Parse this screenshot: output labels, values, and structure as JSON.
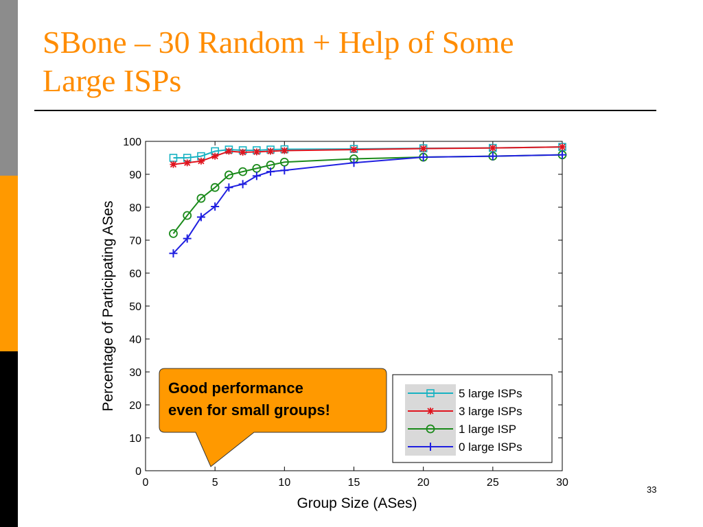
{
  "slide": {
    "title_line1": "SBone – 30 Random + Help of  Some",
    "title_line2": "Large ISPs",
    "page_number": "33"
  },
  "callout": {
    "line1": "Good performance",
    "line2": "even for small groups!",
    "fill_color": "#ff9900"
  },
  "colors": {
    "sidebar": [
      "#8c8c8c",
      "#ff9900",
      "#000000"
    ],
    "title": "#ff8c00"
  },
  "chart_data": {
    "type": "line",
    "xlabel": "Group Size (ASes)",
    "ylabel": "Percentage of Participating ASes",
    "xlim": [
      0,
      30
    ],
    "ylim": [
      0,
      100
    ],
    "xticks": [
      0,
      5,
      10,
      15,
      20,
      25,
      30
    ],
    "yticks": [
      0,
      10,
      20,
      30,
      40,
      50,
      60,
      70,
      80,
      90,
      100
    ],
    "grid": false,
    "legend_position": "bottom-right",
    "series": [
      {
        "name": "5 large ISPs",
        "color": "#17b2c2",
        "marker": "square",
        "x": [
          2,
          3,
          4,
          5,
          6,
          7,
          8,
          9,
          10,
          15,
          20,
          25,
          30
        ],
        "y": [
          95,
          95,
          95.5,
          97,
          97.5,
          97.3,
          97.3,
          97.5,
          97.6,
          97.7,
          97.9,
          98,
          98.3
        ]
      },
      {
        "name": "3 large ISPs",
        "color": "#e0141e",
        "marker": "star",
        "x": [
          2,
          3,
          4,
          5,
          6,
          7,
          8,
          9,
          10,
          15,
          20,
          25,
          30
        ],
        "y": [
          93,
          93.5,
          94,
          95.5,
          97,
          96.7,
          96.8,
          97,
          97.2,
          97.5,
          97.8,
          98,
          98.3
        ]
      },
      {
        "name": "1 large ISP",
        "color": "#1a8a1a",
        "marker": "circle",
        "x": [
          2,
          3,
          4,
          5,
          6,
          7,
          8,
          9,
          10,
          15,
          20,
          25,
          30
        ],
        "y": [
          72,
          77.5,
          82.7,
          86,
          89.8,
          90.8,
          91.8,
          92.8,
          93.7,
          94.7,
          95.2,
          95.5,
          95.9
        ]
      },
      {
        "name": "0 large ISPs",
        "color": "#1f1fe0",
        "marker": "plus",
        "x": [
          2,
          3,
          4,
          5,
          6,
          7,
          8,
          9,
          10,
          15,
          20,
          25,
          30
        ],
        "y": [
          66,
          70.5,
          77,
          80.2,
          86,
          87,
          89.5,
          90.8,
          91.2,
          93.5,
          95.2,
          95.5,
          95.9
        ]
      }
    ]
  }
}
